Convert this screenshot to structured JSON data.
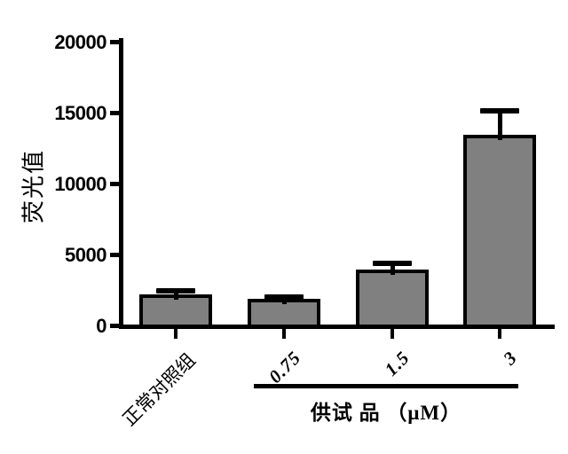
{
  "chart_data": {
    "type": "bar",
    "title": "",
    "ylabel": "荧光值",
    "group_label": "供试 品 （μM）",
    "categories": [
      "正常对照组",
      "0.75",
      "1.5",
      "3"
    ],
    "values": [
      2200,
      1850,
      3950,
      13450
    ],
    "errors_upper": [
      250,
      150,
      450,
      1650
    ],
    "yticks": [
      0,
      5000,
      10000,
      15000,
      20000
    ],
    "ylim": [
      0,
      20000
    ],
    "grid": false,
    "legend": false,
    "group_members": [
      "0.75",
      "1.5",
      "3"
    ],
    "colors": {
      "bar_fill": "#808080",
      "bar_border": "#000000",
      "axis": "#000000",
      "text": "#000000",
      "background": "#ffffff"
    }
  }
}
